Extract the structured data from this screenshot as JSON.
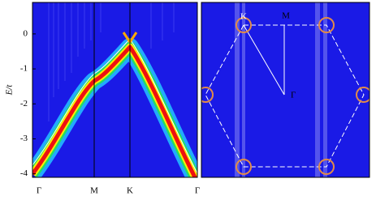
{
  "left_panel": {
    "y_label": "E/t",
    "ylim": [
      -4.1,
      0.9
    ],
    "yticks": [
      0,
      -1,
      -2,
      -3,
      -4
    ],
    "x_labels": [
      "Γ",
      "M",
      "K",
      "Γ"
    ]
  },
  "right_panel": {
    "labels": [
      "K",
      "M",
      "Γ"
    ]
  }
}
